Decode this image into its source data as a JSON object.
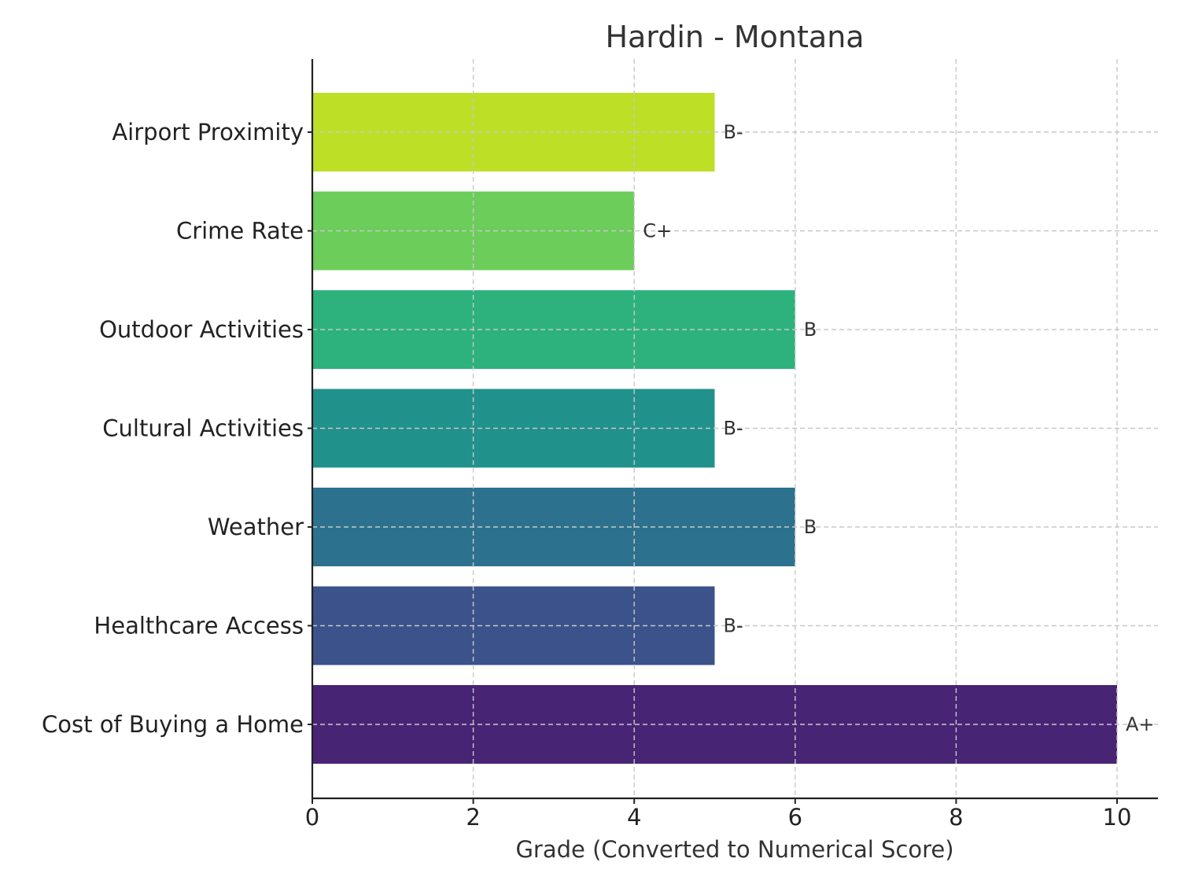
{
  "chart_data": {
    "type": "bar",
    "orientation": "horizontal",
    "title": "Hardin - Montana",
    "xlabel": "Grade (Converted to Numerical Score)",
    "ylabel": "",
    "xlim": [
      0,
      10.5
    ],
    "xticks": [
      0,
      2,
      4,
      6,
      8,
      10
    ],
    "grid": true,
    "categories": [
      "Airport Proximity",
      "Crime Rate",
      "Outdoor Activities",
      "Cultural Activities",
      "Weather",
      "Healthcare Access",
      "Cost of Buying a Home"
    ],
    "values": [
      5,
      4,
      6,
      5,
      6,
      5,
      10
    ],
    "grades": [
      "B-",
      "C+",
      "B",
      "B-",
      "B",
      "B-",
      "A+"
    ],
    "colors": [
      "#bddf26",
      "#6ccd5a",
      "#2db27d",
      "#21918c",
      "#2c728e",
      "#3b528b",
      "#482475"
    ]
  }
}
